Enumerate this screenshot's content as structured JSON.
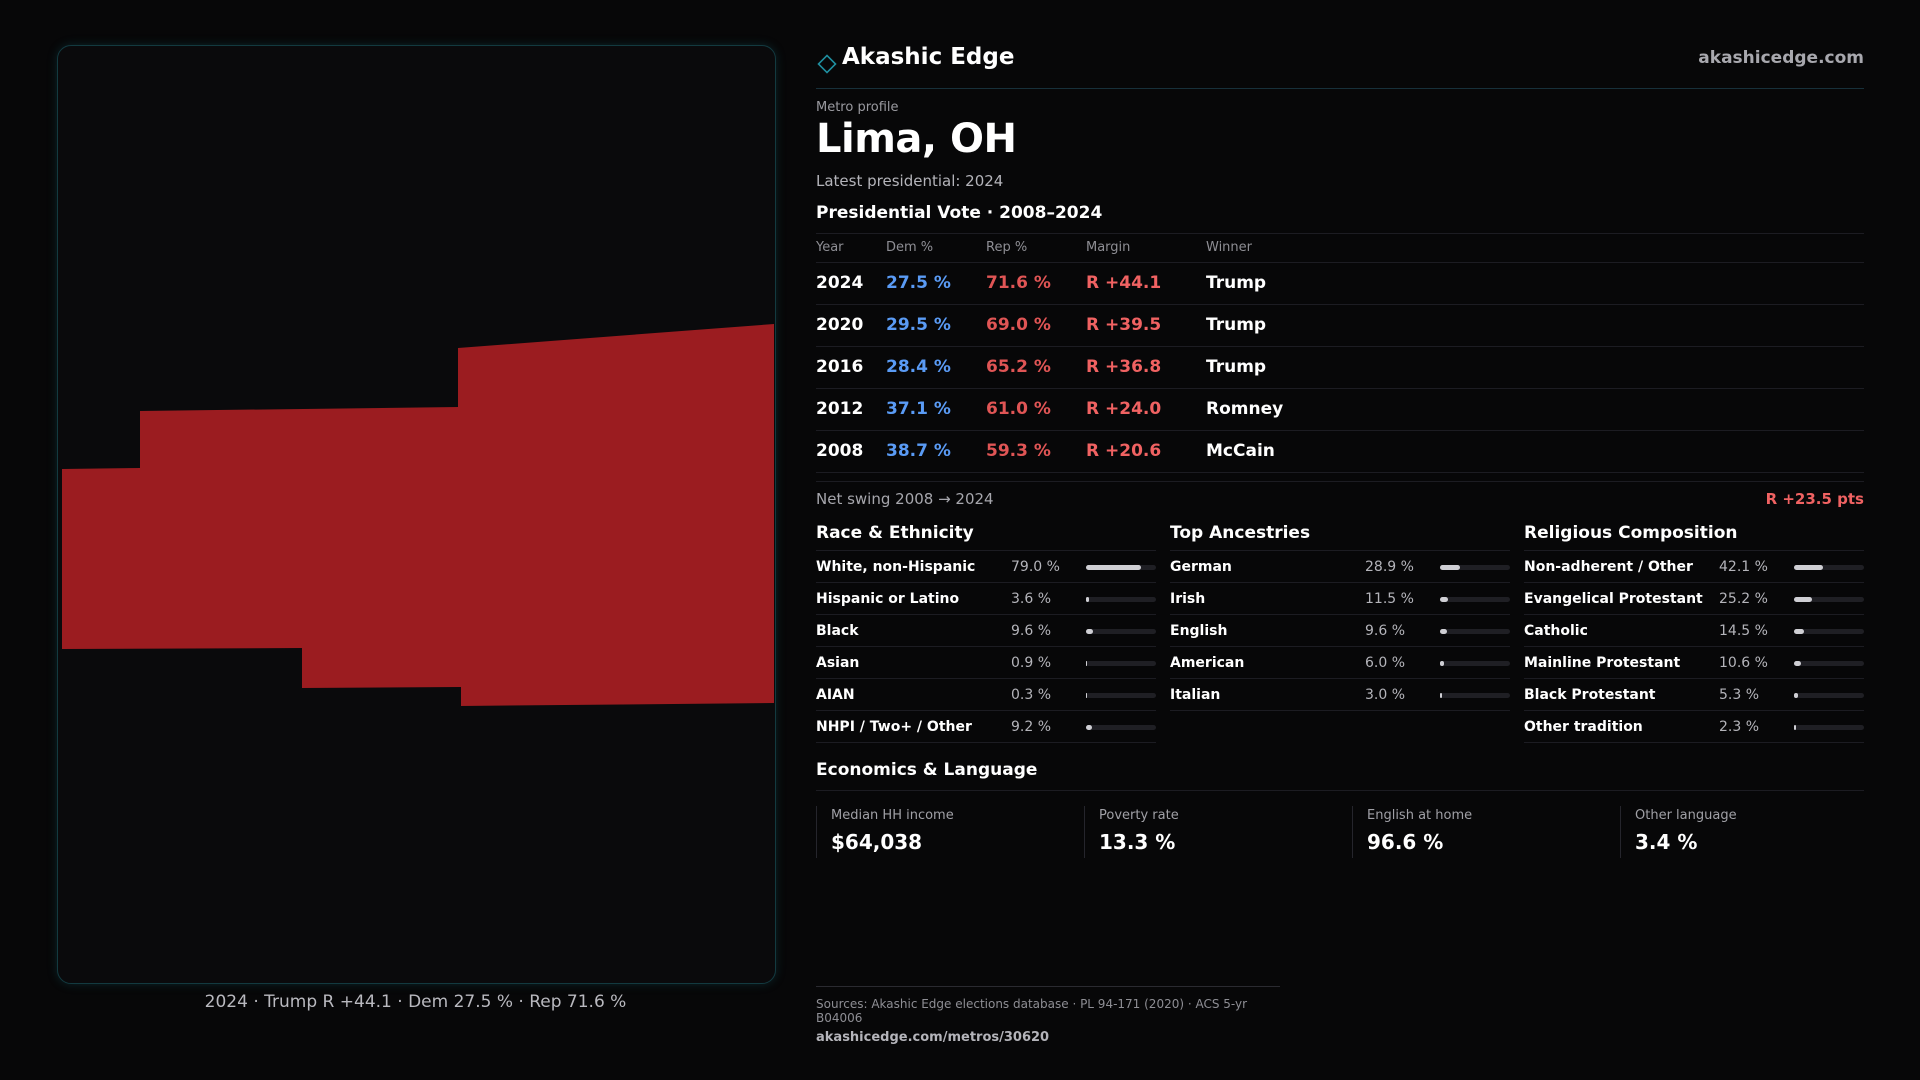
{
  "brand": {
    "name": "Akashic Edge",
    "url": "akashicedge.com",
    "accent": "#21a0b0"
  },
  "map": {
    "fill_color": "#9b1c20",
    "caption": "2024 · Trump R +44.1 · Dem 27.5 % · Rep 71.6 %"
  },
  "header": {
    "kicker": "Metro profile",
    "title": "Lima, OH",
    "latest": "Latest presidential: 2024"
  },
  "vote": {
    "section_title": "Presidential Vote · 2008–2024",
    "columns": [
      "Year",
      "Dem %",
      "Rep %",
      "Margin",
      "Winner"
    ],
    "rows": [
      {
        "year": "2024",
        "dem": "27.5 %",
        "rep": "71.6 %",
        "margin": "R +44.1",
        "winner": "Trump"
      },
      {
        "year": "2020",
        "dem": "29.5 %",
        "rep": "69.0 %",
        "margin": "R +39.5",
        "winner": "Trump"
      },
      {
        "year": "2016",
        "dem": "28.4 %",
        "rep": "65.2 %",
        "margin": "R +36.8",
        "winner": "Trump"
      },
      {
        "year": "2012",
        "dem": "37.1 %",
        "rep": "61.0 %",
        "margin": "R +24.0",
        "winner": "Romney"
      },
      {
        "year": "2008",
        "dem": "38.7 %",
        "rep": "59.3 %",
        "margin": "R +20.6",
        "winner": "McCain"
      }
    ],
    "swing_label": "Net swing 2008 → 2024",
    "swing_value": "R +23.5 pts",
    "dem_color": "#5a9bf5",
    "rep_color": "#e05555"
  },
  "race": {
    "title": "Race & Ethnicity",
    "items": [
      {
        "label": "White, non-Hispanic",
        "value": "79.0 %",
        "pct": 79.0
      },
      {
        "label": "Hispanic or Latino",
        "value": "3.6 %",
        "pct": 3.6
      },
      {
        "label": "Black",
        "value": "9.6 %",
        "pct": 9.6
      },
      {
        "label": "Asian",
        "value": "0.9 %",
        "pct": 0.9
      },
      {
        "label": "AIAN",
        "value": "0.3 %",
        "pct": 0.3
      },
      {
        "label": "NHPI / Two+ / Other",
        "value": "9.2 %",
        "pct": 9.2
      }
    ]
  },
  "ancestry": {
    "title": "Top Ancestries",
    "items": [
      {
        "label": "German",
        "value": "28.9 %",
        "pct": 28.9
      },
      {
        "label": "Irish",
        "value": "11.5 %",
        "pct": 11.5
      },
      {
        "label": "English",
        "value": "9.6 %",
        "pct": 9.6
      },
      {
        "label": "American",
        "value": "6.0 %",
        "pct": 6.0
      },
      {
        "label": "Italian",
        "value": "3.0 %",
        "pct": 3.0
      }
    ]
  },
  "religion": {
    "title": "Religious Composition",
    "items": [
      {
        "label": "Non-adherent / Other",
        "value": "42.1 %",
        "pct": 42.1
      },
      {
        "label": "Evangelical Protestant",
        "value": "25.2 %",
        "pct": 25.2
      },
      {
        "label": "Catholic",
        "value": "14.5 %",
        "pct": 14.5
      },
      {
        "label": "Mainline Protestant",
        "value": "10.6 %",
        "pct": 10.6
      },
      {
        "label": "Black Protestant",
        "value": "5.3 %",
        "pct": 5.3
      },
      {
        "label": "Other tradition",
        "value": "2.3 %",
        "pct": 2.3
      }
    ]
  },
  "economics": {
    "title": "Economics & Language",
    "cells": [
      {
        "label": "Median HH income",
        "value": "$64,038"
      },
      {
        "label": "Poverty rate",
        "value": "13.3 %"
      },
      {
        "label": "English at home",
        "value": "96.6 %"
      },
      {
        "label": "Other language",
        "value": "3.4 %"
      }
    ]
  },
  "footer": {
    "sources": "Sources: Akashic Edge elections database · PL 94-171 (2020) · ACS 5-yr B04006",
    "url": "akashicedge.com/metros/30620"
  }
}
